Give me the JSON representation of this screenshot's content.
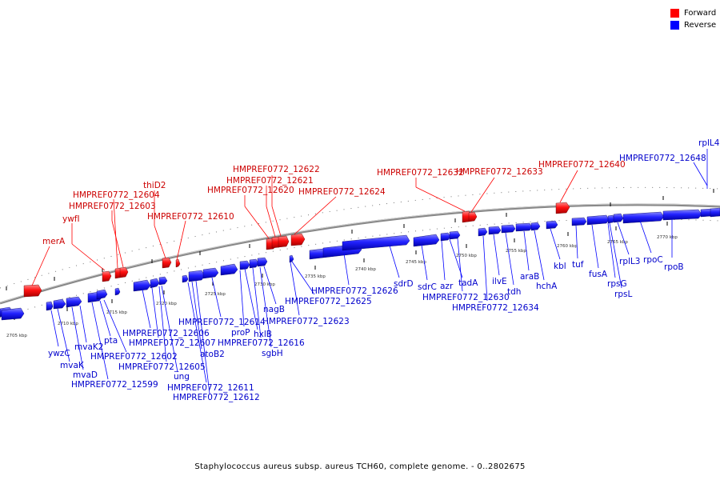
{
  "legend": {
    "forward_label": "Forward",
    "reverse_label": "Reverse",
    "forward_color": "#ff0000",
    "reverse_color": "#0000ff"
  },
  "caption": "Staphylococcus aureus subsp. aureus TCH60, complete genome. - 0..2802675",
  "scale_labels": [
    "2705 kbp",
    "2710 kbp",
    "2715 kbp",
    "2720 kbp",
    "2725 kbp",
    "2730 kbp",
    "2735 kbp",
    "2740 kbp",
    "2745 kbp",
    "2750 kbp",
    "2755 kbp",
    "2760 kbp",
    "2765 kbp",
    "2770 kbp"
  ],
  "forward_genes": [
    "merA",
    "ywfI",
    "HMPREF0772_12604",
    "HMPREF0772_12603",
    "thiD2",
    "HMPREF0772_12610",
    "HMPREF0772_12620",
    "HMPREF0772_12621",
    "HMPREF0772_12622",
    "HMPREF0772_12624",
    "HMPREF0772_12632",
    "HMPREF0772_12633",
    "HMPREF0772_12640"
  ],
  "reverse_genes": [
    "ywzC",
    "mvaK",
    "mvaD",
    "mvaK2",
    "HMPREF0772_12599",
    "pta",
    "HMPREF0772_12602",
    "HMPREF0772_12606",
    "HMPREF0772_12607",
    "HMPREF0772_12605",
    "ung",
    "atoB2",
    "HMPREF0772_12611",
    "HMPREF0772_12612",
    "HMPREF0772_12614",
    "proP",
    "hxlB",
    "HMPREF0772_12616",
    "sgbH",
    "nagB",
    "HMPREF0772_12623",
    "HMPREF0772_12625",
    "HMPREF0772_12626",
    "sdrD",
    "sdrC",
    "azr",
    "tadA",
    "HMPREF0772_12630",
    "HMPREF0772_12634",
    "ilvE",
    "tdh",
    "araB",
    "hchA",
    "kbl",
    "tuf",
    "fusA",
    "rpsG",
    "rpsL",
    "rplL3",
    "rpoC",
    "rpoB",
    "HMPREF0772_12648",
    "rplL4"
  ]
}
